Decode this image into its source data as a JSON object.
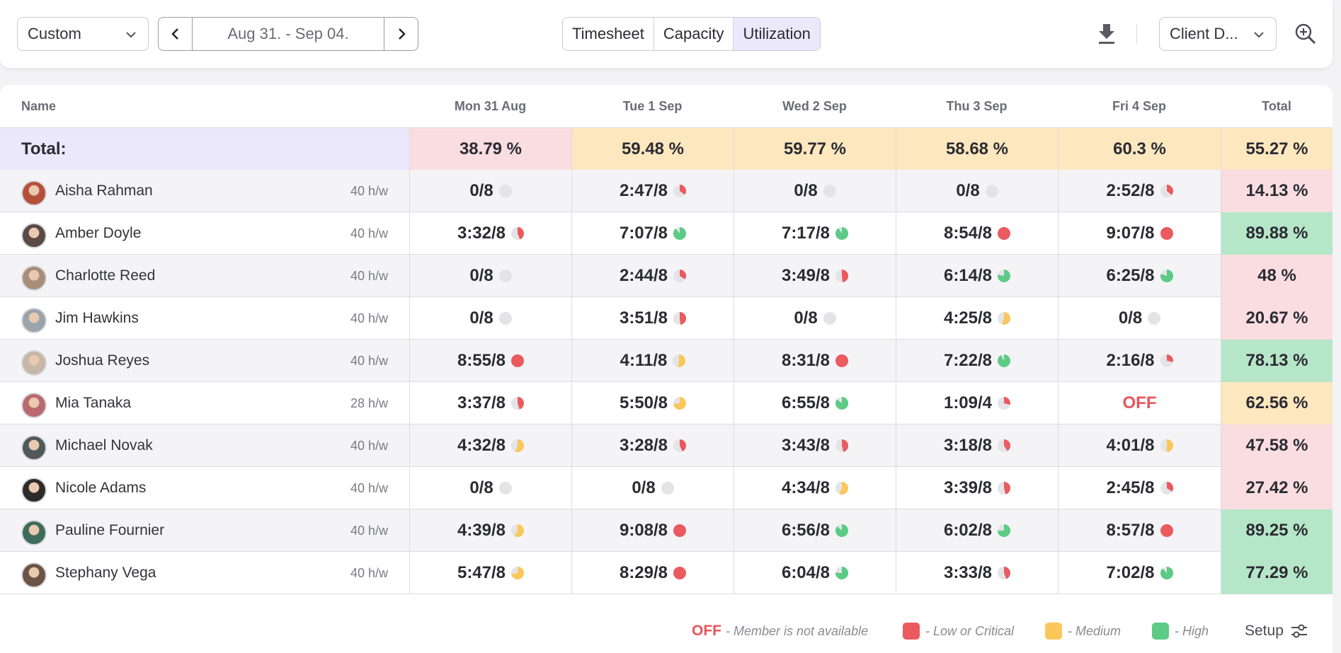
{
  "toolbar": {
    "period_select": "Custom",
    "date_range": "Aug 31. - Sep 04.",
    "tabs": [
      {
        "label": "Timesheet",
        "active": false
      },
      {
        "label": "Capacity",
        "active": false
      },
      {
        "label": "Utilization",
        "active": true
      }
    ],
    "client_select": "Client D...",
    "icons": {
      "prev": "chevron-left-icon",
      "next": "chevron-right-icon",
      "download": "download-icon",
      "zoom": "zoom-in-icon"
    }
  },
  "table": {
    "columns": [
      "Name",
      "Mon 31 Aug",
      "Tue 1 Sep",
      "Wed 2 Sep",
      "Thu 3 Sep",
      "Fri 4 Sep",
      "Total"
    ],
    "totals_row": {
      "label": "Total:",
      "days": [
        {
          "value": "38.79 %",
          "level": "red"
        },
        {
          "value": "59.48 %",
          "level": "yellow"
        },
        {
          "value": "59.77 %",
          "level": "yellow"
        },
        {
          "value": "58.68 %",
          "level": "yellow"
        },
        {
          "value": "60.3 %",
          "level": "yellow"
        }
      ],
      "total": {
        "value": "55.27 %",
        "level": "yellow"
      }
    },
    "rows": [
      {
        "name": "Aisha Rahman",
        "capacity": "40 h/w",
        "avatar_color": "#b5513a",
        "days": [
          {
            "text": "0/8",
            "fill": 0
          },
          {
            "text": "2:47/8",
            "fill": 0.35
          },
          {
            "text": "0/8",
            "fill": 0
          },
          {
            "text": "0/8",
            "fill": 0
          },
          {
            "text": "2:52/8",
            "fill": 0.36
          }
        ],
        "total": {
          "value": "14.13 %",
          "level": "red"
        }
      },
      {
        "name": "Amber Doyle",
        "capacity": "40 h/w",
        "avatar_color": "#5a4a44",
        "days": [
          {
            "text": "3:32/8",
            "fill": 0.44
          },
          {
            "text": "7:07/8",
            "fill": 0.89
          },
          {
            "text": "7:17/8",
            "fill": 0.91
          },
          {
            "text": "8:54/8",
            "fill": 1
          },
          {
            "text": "9:07/8",
            "fill": 1
          }
        ],
        "total": {
          "value": "89.88 %",
          "level": "green"
        }
      },
      {
        "name": "Charlotte Reed",
        "capacity": "40 h/w",
        "avatar_color": "#a88e78",
        "days": [
          {
            "text": "0/8",
            "fill": 0
          },
          {
            "text": "2:44/8",
            "fill": 0.34
          },
          {
            "text": "3:49/8",
            "fill": 0.48
          },
          {
            "text": "6:14/8",
            "fill": 0.78
          },
          {
            "text": "6:25/8",
            "fill": 0.8
          }
        ],
        "total": {
          "value": "48 %",
          "level": "red"
        }
      },
      {
        "name": "Jim Hawkins",
        "capacity": "40 h/w",
        "avatar_color": "#9aa4aa",
        "days": [
          {
            "text": "0/8",
            "fill": 0
          },
          {
            "text": "3:51/8",
            "fill": 0.48
          },
          {
            "text": "0/8",
            "fill": 0
          },
          {
            "text": "4:25/8",
            "fill": 0.55
          },
          {
            "text": "0/8",
            "fill": 0
          }
        ],
        "total": {
          "value": "20.67 %",
          "level": "red"
        }
      },
      {
        "name": "Joshua Reyes",
        "capacity": "40 h/w",
        "avatar_color": "#c7b7a8",
        "days": [
          {
            "text": "8:55/8",
            "fill": 1
          },
          {
            "text": "4:11/8",
            "fill": 0.52
          },
          {
            "text": "8:31/8",
            "fill": 1
          },
          {
            "text": "7:22/8",
            "fill": 0.92
          },
          {
            "text": "2:16/8",
            "fill": 0.28
          }
        ],
        "total": {
          "value": "78.13 %",
          "level": "green"
        }
      },
      {
        "name": "Mia Tanaka",
        "capacity": "28 h/w",
        "avatar_color": "#b86a6e",
        "days": [
          {
            "text": "3:37/8",
            "fill": 0.45
          },
          {
            "text": "5:50/8",
            "fill": 0.73
          },
          {
            "text": "6:55/8",
            "fill": 0.86
          },
          {
            "text": "1:09/4",
            "fill": 0.29
          },
          {
            "text": "OFF",
            "off": true
          }
        ],
        "total": {
          "value": "62.56 %",
          "level": "yellow"
        }
      },
      {
        "name": "Michael Novak",
        "capacity": "40 h/w",
        "avatar_color": "#4f5a58",
        "days": [
          {
            "text": "4:32/8",
            "fill": 0.57
          },
          {
            "text": "3:28/8",
            "fill": 0.43
          },
          {
            "text": "3:43/8",
            "fill": 0.46
          },
          {
            "text": "3:18/8",
            "fill": 0.41
          },
          {
            "text": "4:01/8",
            "fill": 0.5
          }
        ],
        "total": {
          "value": "47.58 %",
          "level": "red"
        }
      },
      {
        "name": "Nicole Adams",
        "capacity": "40 h/w",
        "avatar_color": "#2e2a2a",
        "days": [
          {
            "text": "0/8",
            "fill": 0
          },
          {
            "text": "0/8",
            "fill": 0
          },
          {
            "text": "4:34/8",
            "fill": 0.57
          },
          {
            "text": "3:39/8",
            "fill": 0.46
          },
          {
            "text": "2:45/8",
            "fill": 0.34
          }
        ],
        "total": {
          "value": "27.42 %",
          "level": "red"
        }
      },
      {
        "name": "Pauline Fournier",
        "capacity": "40 h/w",
        "avatar_color": "#3f6c5a",
        "days": [
          {
            "text": "4:39/8",
            "fill": 0.58
          },
          {
            "text": "9:08/8",
            "fill": 1
          },
          {
            "text": "6:56/8",
            "fill": 0.87
          },
          {
            "text": "6:02/8",
            "fill": 0.75
          },
          {
            "text": "8:57/8",
            "fill": 1
          }
        ],
        "total": {
          "value": "89.25 %",
          "level": "green"
        }
      },
      {
        "name": "Stephany Vega",
        "capacity": "40 h/w",
        "avatar_color": "#6b5446",
        "days": [
          {
            "text": "5:47/8",
            "fill": 0.72
          },
          {
            "text": "8:29/8",
            "fill": 1
          },
          {
            "text": "6:04/8",
            "fill": 0.76
          },
          {
            "text": "3:33/8",
            "fill": 0.44
          },
          {
            "text": "7:02/8",
            "fill": 0.88
          }
        ],
        "total": {
          "value": "77.29 %",
          "level": "green"
        }
      }
    ]
  },
  "legend": {
    "off_label": "OFF",
    "off_text": "- Member is not available",
    "low_text": "- Low or Critical",
    "medium_text": "- Medium",
    "high_text": "- High",
    "setup_label": "Setup"
  },
  "colors": {
    "red": "#ea5a5f",
    "yellow": "#fbc75b",
    "green": "#5ccb86",
    "empty": "#e4e4e8"
  }
}
